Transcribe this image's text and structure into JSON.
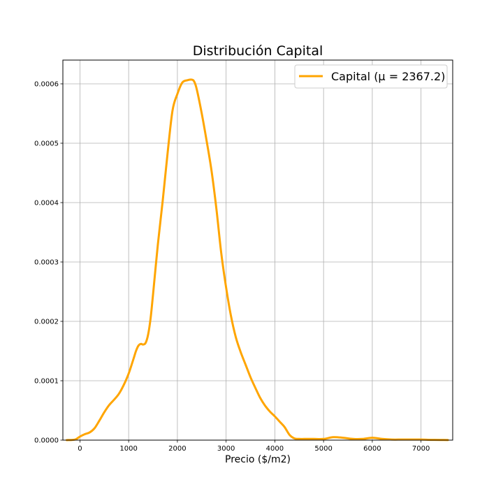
{
  "chart_data": {
    "type": "line",
    "title": "Distribución Capital",
    "xlabel": "Precio ($/m2)",
    "ylabel": "",
    "xlim": [
      -350,
      7650
    ],
    "ylim": [
      0,
      0.00064
    ],
    "xticks": [
      0,
      1000,
      2000,
      3000,
      4000,
      5000,
      6000,
      7000
    ],
    "yticks": [
      0.0,
      0.0001,
      0.0002,
      0.0003,
      0.0004,
      0.0005,
      0.0006
    ],
    "ytick_labels": [
      "0.0000",
      "0.0001",
      "0.0002",
      "0.0003",
      "0.0004",
      "0.0005",
      "0.0006"
    ],
    "grid": true,
    "legend_position": "top-right",
    "legend_label": "Capital ($\\mu = 2367.2$)",
    "legend_display": "Capital (μ = 2367.2)",
    "series": [
      {
        "name": "Capital (μ = 2367.2)",
        "color": "#FFA500",
        "x": [
          -270,
          -100,
          0,
          100,
          200,
          300,
          400,
          500,
          600,
          700,
          800,
          900,
          1000,
          1100,
          1150,
          1200,
          1250,
          1300,
          1350,
          1400,
          1450,
          1500,
          1600,
          1700,
          1800,
          1900,
          2000,
          2100,
          2200,
          2300,
          2350,
          2400,
          2500,
          2600,
          2700,
          2800,
          2900,
          3000,
          3100,
          3200,
          3300,
          3400,
          3500,
          3600,
          3700,
          3800,
          3900,
          4000,
          4100,
          4200,
          4300,
          4400,
          4500,
          4600,
          4700,
          4800,
          5000,
          5200,
          5400,
          5600,
          5800,
          6000,
          6200,
          6400,
          6600,
          6800,
          7000,
          7200,
          7400,
          7550
        ],
        "y": [
          0.0,
          1e-06,
          6e-06,
          1e-05,
          1.3e-05,
          2e-05,
          3.3e-05,
          4.7e-05,
          5.9e-05,
          6.8e-05,
          7.8e-05,
          9.3e-05,
          0.000112,
          0.000137,
          0.00015,
          0.000159,
          0.000162,
          0.000161,
          0.000164,
          0.000178,
          0.000205,
          0.000245,
          0.00033,
          0.000404,
          0.000484,
          0.000555,
          0.000583,
          0.000602,
          0.000606,
          0.000607,
          0.000603,
          0.00059,
          0.00055,
          0.000504,
          0.000454,
          0.00039,
          0.000315,
          0.000257,
          0.000209,
          0.000173,
          0.000148,
          0.000127,
          0.000106,
          8.8e-05,
          7.1e-05,
          5.8e-05,
          4.8e-05,
          4e-05,
          3.1e-05,
          2.2e-05,
          9e-06,
          3e-06,
          2e-06,
          2e-06,
          2e-06,
          2e-06,
          2e-06,
          5e-06,
          4e-06,
          2e-06,
          2e-06,
          4e-06,
          2e-06,
          1e-06,
          1e-06,
          1e-06,
          1e-06,
          5e-07,
          3e-07,
          2e-07
        ]
      }
    ]
  }
}
